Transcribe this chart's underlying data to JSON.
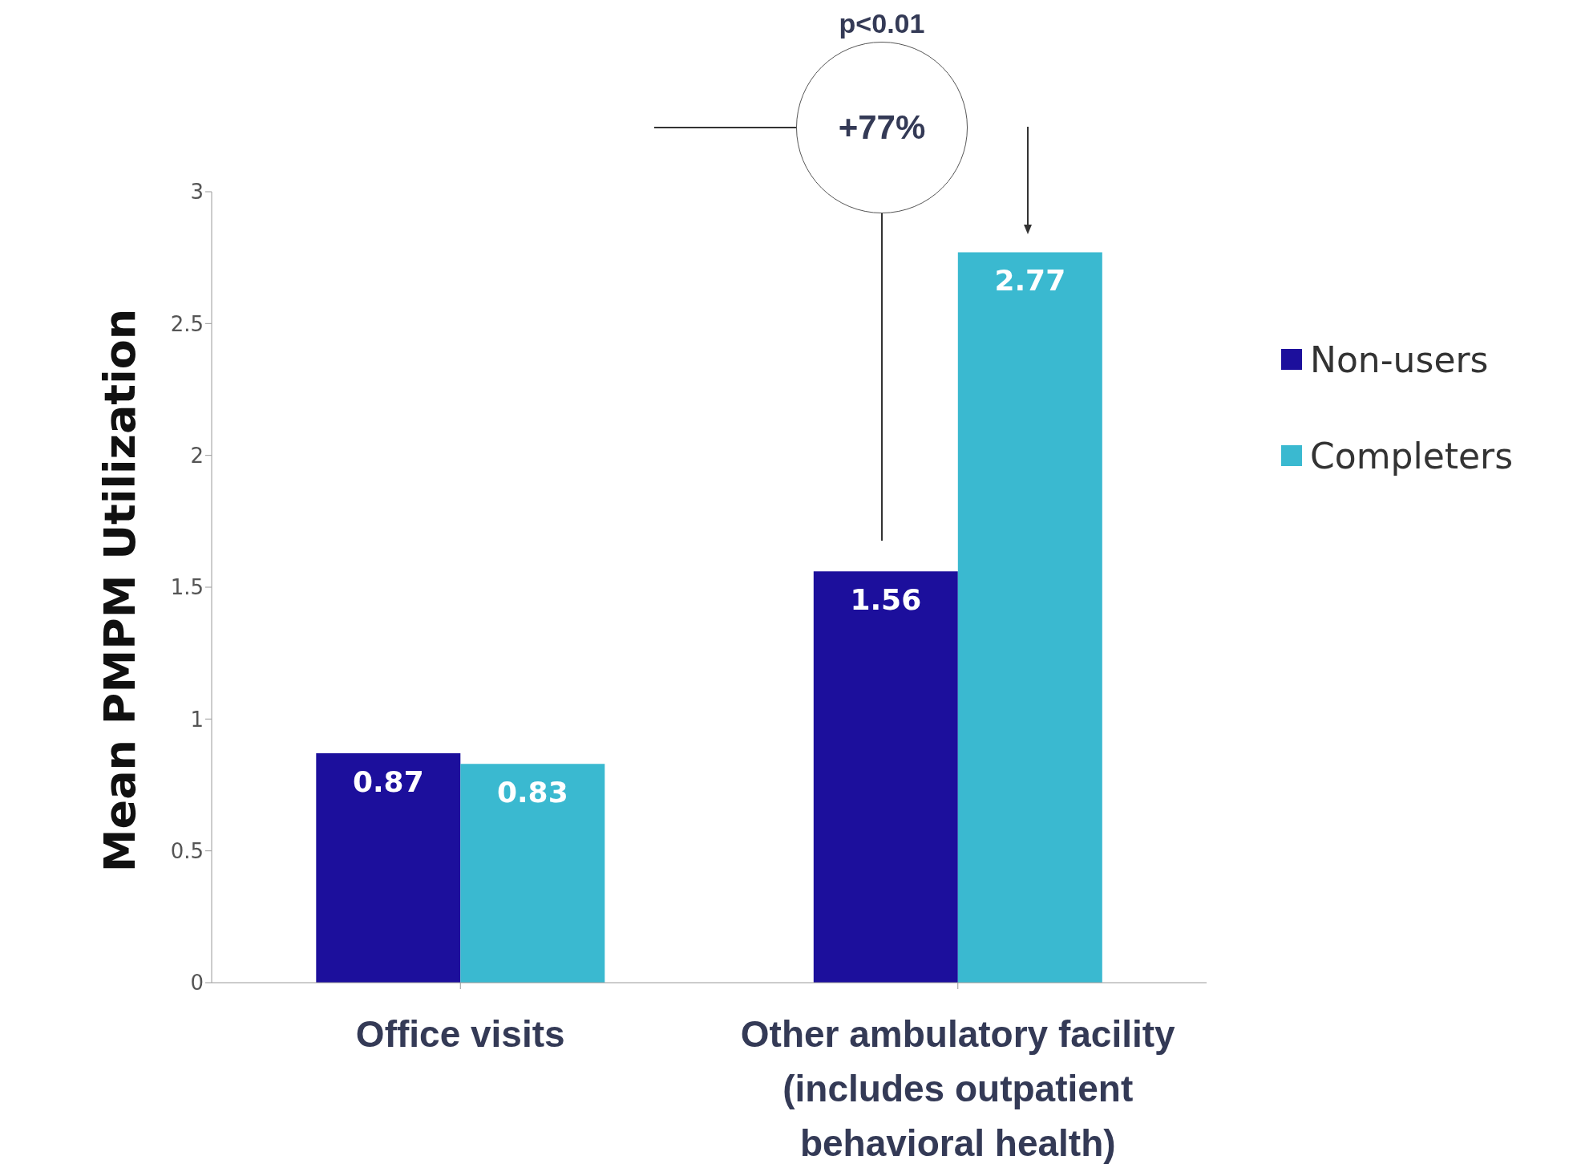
{
  "chart_data": {
    "type": "bar",
    "categories": [
      "Office visits",
      "Other ambulatory facility (includes outpatient behavioral health)"
    ],
    "series": [
      {
        "name": "Non-users",
        "color": "#1c0f9c",
        "values": [
          0.87,
          1.56
        ]
      },
      {
        "name": "Completers",
        "color": "#3ab9d0",
        "values": [
          0.83,
          2.77
        ]
      }
    ],
    "ylabel": "Mean PMPM Utilization",
    "ylim": [
      0,
      3
    ],
    "yticks": [
      0,
      0.5,
      1,
      1.5,
      2,
      2.5,
      3
    ],
    "data_labels": true,
    "legend": "right",
    "grid": false,
    "annotations": [
      "p<0.01",
      "+77%"
    ]
  }
}
